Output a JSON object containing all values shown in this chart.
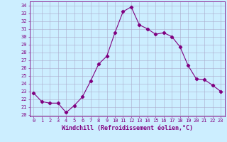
{
  "x": [
    0,
    1,
    2,
    3,
    4,
    5,
    6,
    7,
    8,
    9,
    10,
    11,
    12,
    13,
    14,
    15,
    16,
    17,
    18,
    19,
    20,
    21,
    22,
    23
  ],
  "y": [
    22.8,
    21.7,
    21.5,
    21.5,
    20.3,
    21.2,
    22.3,
    24.3,
    26.5,
    27.5,
    30.5,
    33.2,
    33.8,
    31.5,
    31.0,
    30.3,
    30.5,
    30.0,
    28.7,
    26.3,
    24.6,
    24.5,
    23.8,
    23.0
  ],
  "line_color": "#800080",
  "marker": "D",
  "marker_size": 2.2,
  "bg_color": "#cceeff",
  "grid_color": "#aaaacc",
  "xlabel": "Windchill (Refroidissement éolien,°C)",
  "xlabel_color": "#800080",
  "ylabel_ticks": [
    20,
    21,
    22,
    23,
    24,
    25,
    26,
    27,
    28,
    29,
    30,
    31,
    32,
    33,
    34
  ],
  "ylim": [
    19.8,
    34.5
  ],
  "xlim": [
    -0.5,
    23.5
  ],
  "tick_color": "#800080",
  "spine_color": "#800080",
  "tick_fontsize": 5.0,
  "xlabel_fontsize": 6.0,
  "font_family": "monospace"
}
